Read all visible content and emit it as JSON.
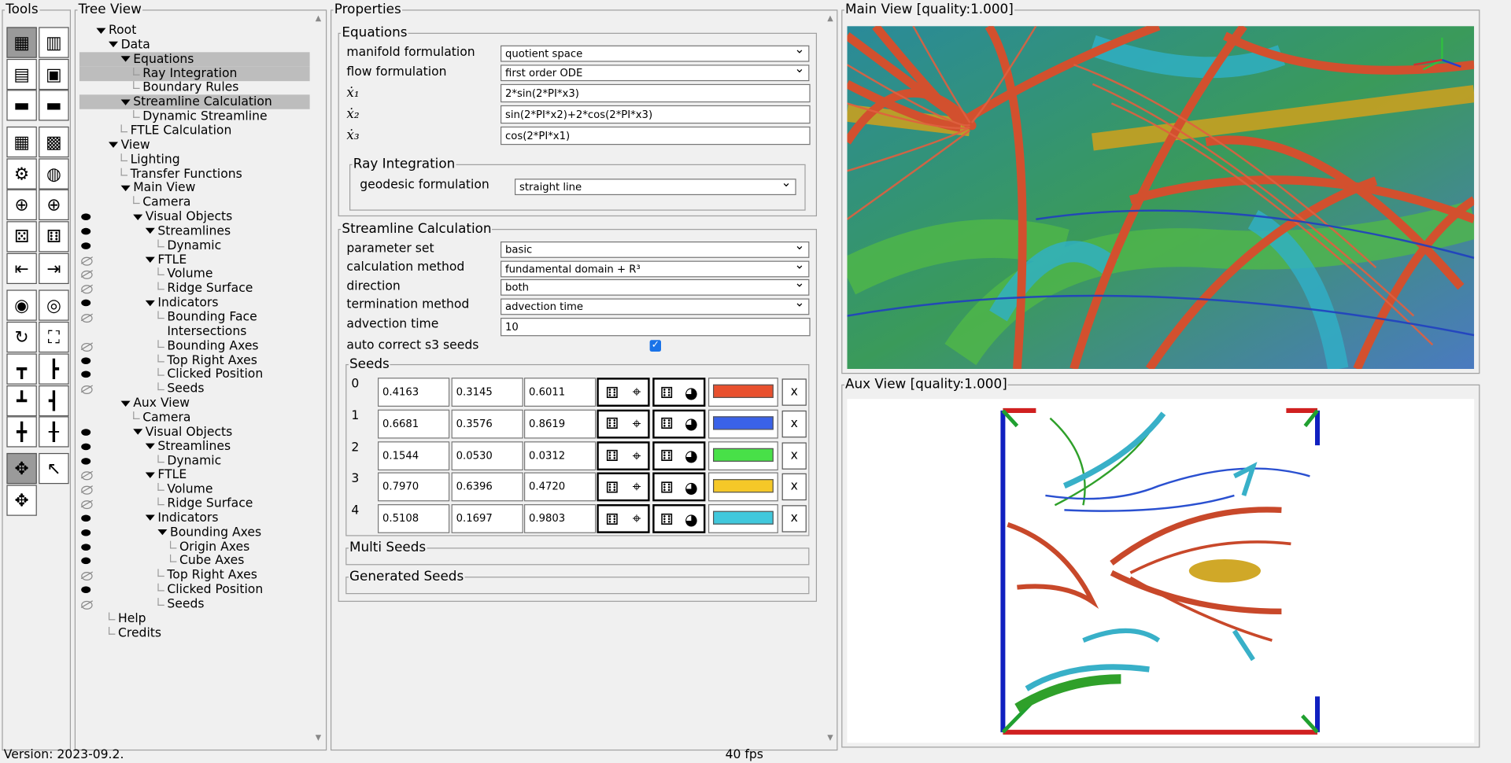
{
  "tools": {
    "title": "Tools"
  },
  "tree": {
    "title": "Tree View",
    "nodes": [
      {
        "label": "Root",
        "depth": 0,
        "kind": "open"
      },
      {
        "label": "Data",
        "depth": 1,
        "kind": "open"
      },
      {
        "label": "Equations",
        "depth": 2,
        "kind": "open",
        "hl": true
      },
      {
        "label": "Ray Integration",
        "depth": 3,
        "kind": "leaf",
        "hl": true
      },
      {
        "label": "Boundary Rules",
        "depth": 3,
        "kind": "leaf"
      },
      {
        "label": "Streamline Calculation",
        "depth": 2,
        "kind": "open",
        "hl": true
      },
      {
        "label": "Dynamic Streamline",
        "depth": 3,
        "kind": "leaf"
      },
      {
        "label": "FTLE Calculation",
        "depth": 2,
        "kind": "leaf"
      },
      {
        "label": "View",
        "depth": 1,
        "kind": "open"
      },
      {
        "label": "Lighting",
        "depth": 2,
        "kind": "leaf"
      },
      {
        "label": "Transfer Functions",
        "depth": 2,
        "kind": "leaf"
      },
      {
        "label": "Main View",
        "depth": 2,
        "kind": "open"
      },
      {
        "label": "Camera",
        "depth": 3,
        "kind": "leaf"
      },
      {
        "label": "Visual Objects",
        "depth": 3,
        "kind": "open",
        "eye": "on"
      },
      {
        "label": "Streamlines",
        "depth": 4,
        "kind": "open",
        "eye": "on"
      },
      {
        "label": "Dynamic",
        "depth": 5,
        "kind": "leaf",
        "eye": "on"
      },
      {
        "label": "FTLE",
        "depth": 4,
        "kind": "open",
        "eye": "off"
      },
      {
        "label": "Volume",
        "depth": 5,
        "kind": "leaf",
        "eye": "off"
      },
      {
        "label": "Ridge Surface",
        "depth": 5,
        "kind": "leaf",
        "eye": "off"
      },
      {
        "label": "Indicators",
        "depth": 4,
        "kind": "open",
        "eye": "on"
      },
      {
        "label": "Bounding Face",
        "depth": 5,
        "kind": "leaf",
        "eye": "off"
      },
      {
        "label": "Intersections",
        "depth": 5,
        "kind": "none"
      },
      {
        "label": "Bounding Axes",
        "depth": 5,
        "kind": "leaf",
        "eye": "off"
      },
      {
        "label": "Top Right Axes",
        "depth": 5,
        "kind": "leaf",
        "eye": "on"
      },
      {
        "label": "Clicked Position",
        "depth": 5,
        "kind": "leaf",
        "eye": "on"
      },
      {
        "label": "Seeds",
        "depth": 5,
        "kind": "leaf",
        "eye": "off"
      },
      {
        "label": "Aux View",
        "depth": 2,
        "kind": "open"
      },
      {
        "label": "Camera",
        "depth": 3,
        "kind": "leaf"
      },
      {
        "label": "Visual Objects",
        "depth": 3,
        "kind": "open",
        "eye": "on"
      },
      {
        "label": "Streamlines",
        "depth": 4,
        "kind": "open",
        "eye": "on"
      },
      {
        "label": "Dynamic",
        "depth": 5,
        "kind": "leaf",
        "eye": "on"
      },
      {
        "label": "FTLE",
        "depth": 4,
        "kind": "open",
        "eye": "off"
      },
      {
        "label": "Volume",
        "depth": 5,
        "kind": "leaf",
        "eye": "off"
      },
      {
        "label": "Ridge Surface",
        "depth": 5,
        "kind": "leaf",
        "eye": "off"
      },
      {
        "label": "Indicators",
        "depth": 4,
        "kind": "open",
        "eye": "on"
      },
      {
        "label": "Bounding Axes",
        "depth": 5,
        "kind": "open",
        "eye": "on"
      },
      {
        "label": "Origin Axes",
        "depth": 6,
        "kind": "leaf",
        "eye": "on"
      },
      {
        "label": "Cube Axes",
        "depth": 6,
        "kind": "leaf",
        "eye": "on"
      },
      {
        "label": "Top Right Axes",
        "depth": 5,
        "kind": "leaf",
        "eye": "off"
      },
      {
        "label": "Clicked Position",
        "depth": 5,
        "kind": "leaf",
        "eye": "on"
      },
      {
        "label": "Seeds",
        "depth": 5,
        "kind": "leaf",
        "eye": "off"
      },
      {
        "label": "Help",
        "depth": 1,
        "kind": "leaf"
      },
      {
        "label": "Credits",
        "depth": 1,
        "kind": "leaf"
      }
    ]
  },
  "props": {
    "title": "Properties",
    "equations": {
      "title": "Equations",
      "manifold_label": "manifold formulation",
      "manifold_value": "quotient space",
      "flow_label": "flow formulation",
      "flow_value": "first order ODE",
      "x1_label": "ẋ₁",
      "x1_value": "2*sin(2*PI*x3)",
      "x2_label": "ẋ₂",
      "x2_value": "sin(2*PI*x2)+2*cos(2*PI*x3)",
      "x3_label": "ẋ₃",
      "x3_value": "cos(2*PI*x1)"
    },
    "ray": {
      "title": "Ray Integration",
      "geodesic_label": "geodesic formulation",
      "geodesic_value": "straight line"
    },
    "stream": {
      "title": "Streamline Calculation",
      "param_label": "parameter set",
      "param_value": "basic",
      "method_label": "calculation method",
      "method_value": "fundamental domain + R³",
      "direction_label": "direction",
      "direction_value": "both",
      "term_label": "termination method",
      "term_value": "advection time",
      "adv_label": "advection time",
      "adv_value": "10",
      "autocorrect_label": "auto correct s3 seeds"
    },
    "seeds": {
      "title": "Seeds",
      "rows": [
        {
          "idx": "0",
          "x": "0.4163",
          "y": "0.3145",
          "z": "0.6011",
          "color": "#e8502e"
        },
        {
          "idx": "1",
          "x": "0.6681",
          "y": "0.3576",
          "z": "0.8619",
          "color": "#3a62e8"
        },
        {
          "idx": "2",
          "x": "0.1544",
          "y": "0.0530",
          "z": "0.0312",
          "color": "#48e048"
        },
        {
          "idx": "3",
          "x": "0.7970",
          "y": "0.6396",
          "z": "0.4720",
          "color": "#f5c828"
        },
        {
          "idx": "4",
          "x": "0.5108",
          "y": "0.1697",
          "z": "0.9803",
          "color": "#40c8dc"
        }
      ],
      "remove": "x"
    },
    "multi_seeds": "Multi Seeds",
    "generated_seeds": "Generated Seeds"
  },
  "main_view": {
    "title": "Main View [quality:1.000]"
  },
  "aux_view": {
    "title": "Aux View [quality:1.000]"
  },
  "status": {
    "version": "Version: 2023-09.2.",
    "fps": "40 fps"
  }
}
